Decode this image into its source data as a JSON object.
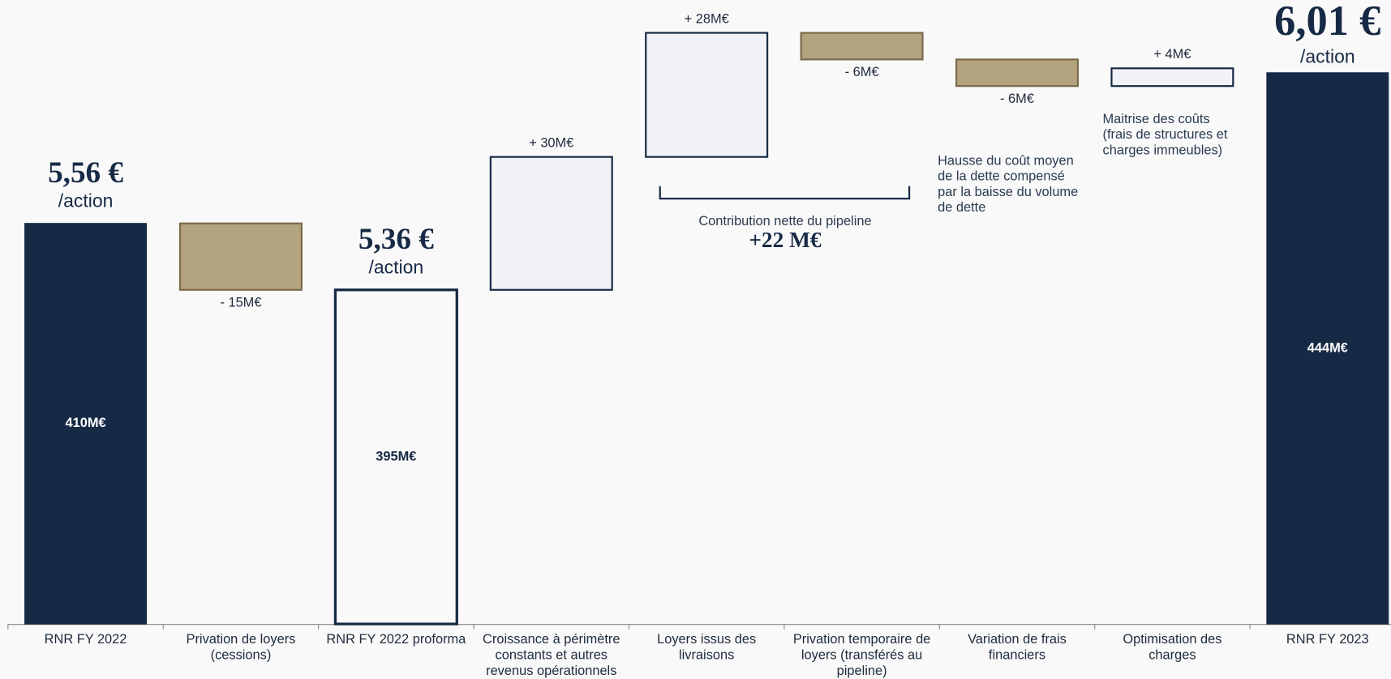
{
  "chart_data": {
    "type": "waterfall",
    "categories": [
      "RNR FY 2022",
      "Privation de loyers (cessions)",
      "RNR FY 2022 proforma",
      "Croissance à périmètre constants et autres revenus opérationnels",
      "Loyers issus des livraisons",
      "Privation temporaire de loyers (transférés au pipeline)",
      "Variation de frais financiers",
      "Optimisation des charges",
      "RNR FY 2023"
    ],
    "values": [
      410,
      -15,
      395,
      30,
      28,
      -6,
      -6,
      4,
      444
    ],
    "value_labels": [
      "410M€",
      "- 15M€",
      "395M€",
      "+ 30M€",
      "+ 28M€",
      "- 6M€",
      "- 6M€",
      "+ 4M€",
      "444M€"
    ],
    "bar_kinds": [
      "total",
      "decrease",
      "subtotal",
      "increase",
      "increase",
      "decrease",
      "decrease",
      "increase",
      "total"
    ],
    "colors": {
      "total": "#172a45",
      "subtotal": "#f9f9f9",
      "increase": "#f0f2f7",
      "decrease": "#b3a47f",
      "outline": "#172a45",
      "decrease_outline": "#7a6a4a"
    },
    "per_share_labels": [
      "5,56 €",
      "5,36 €",
      "6,01 €"
    ],
    "per_share_unit": "/action",
    "pipeline_label": "Contribution nette du pipeline",
    "pipeline_value": "+22 M€",
    "notes": [
      {
        "lines": [
          "Hausse du coût moyen",
          "de la dette compensé",
          "par la baisse du volume",
          "de dette"
        ]
      },
      {
        "lines": [
          "Maitrise des coûts",
          "(frais de structures et",
          "charges immeubles)"
        ]
      }
    ]
  }
}
